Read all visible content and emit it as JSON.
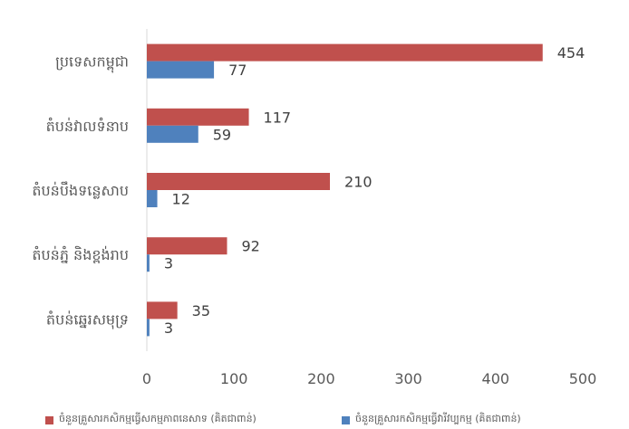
{
  "chart_data": {
    "type": "bar",
    "orientation": "horizontal",
    "categories": [
      "ប្រទេសកម្ពុជា",
      "តំបន់វាលទំនាប",
      "តំបន់បឹងទន្លេសាប",
      "តំបន់ភ្នំ និងខ្ពង់រាប",
      "តំបន់ឆ្នេរសមុទ្រ"
    ],
    "series": [
      {
        "name": "ចំនួនគ្រួសារកសិកម្មធ្វើសកម្មភាពនេសាទ (គិតជាពាន់)",
        "values": [
          454,
          117,
          210,
          92,
          35
        ],
        "color": "#c0504d"
      },
      {
        "name": "ចំនួនគ្រួសារកសិកម្មធ្វើវារីវប្បកម្ម (គិតជាពាន់)",
        "values": [
          77,
          59,
          12,
          3,
          3
        ],
        "color": "#4f81bd"
      }
    ],
    "xlim": [
      0,
      500
    ],
    "xticks": [
      "0",
      "100",
      "200",
      "300",
      "400",
      "500"
    ],
    "grid": false,
    "legend_position": "bottom"
  }
}
